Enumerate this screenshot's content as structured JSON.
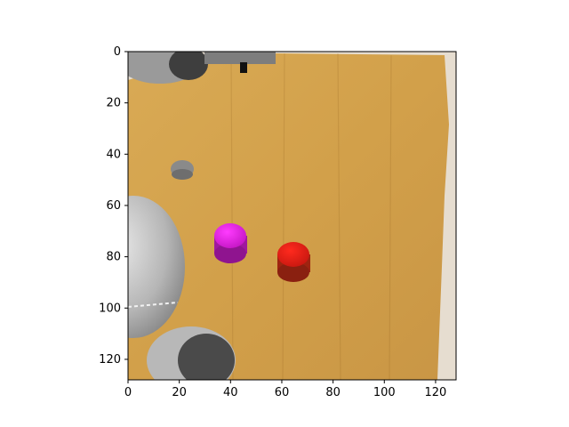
{
  "figure": {
    "type": "image-plot",
    "axes": {
      "x_ticks": [
        "0",
        "20",
        "40",
        "60",
        "80",
        "100",
        "120"
      ],
      "y_ticks": [
        "0",
        "20",
        "40",
        "60",
        "80",
        "100",
        "120"
      ],
      "x_range": [
        0,
        128
      ],
      "y_range": [
        128,
        0
      ],
      "grid": false
    },
    "scene": {
      "description": "top-down simulated robot workspace on a wooden tabletop",
      "objects": [
        {
          "name": "magenta-cylinder",
          "color": "#e81ee8",
          "x": 40,
          "y": 75
        },
        {
          "name": "red-cylinder",
          "color": "#e01a12",
          "x": 64,
          "y": 80
        },
        {
          "name": "gray-peg",
          "color": "#8a8a8a",
          "x": 21,
          "y": 45
        }
      ],
      "colors": {
        "table": "#d4a24a",
        "table_grain": "#c08a38",
        "robot_gray": "#b8b8b8",
        "robot_dark": "#4a4a4a",
        "right_strip": "#e6ddd0"
      }
    }
  }
}
